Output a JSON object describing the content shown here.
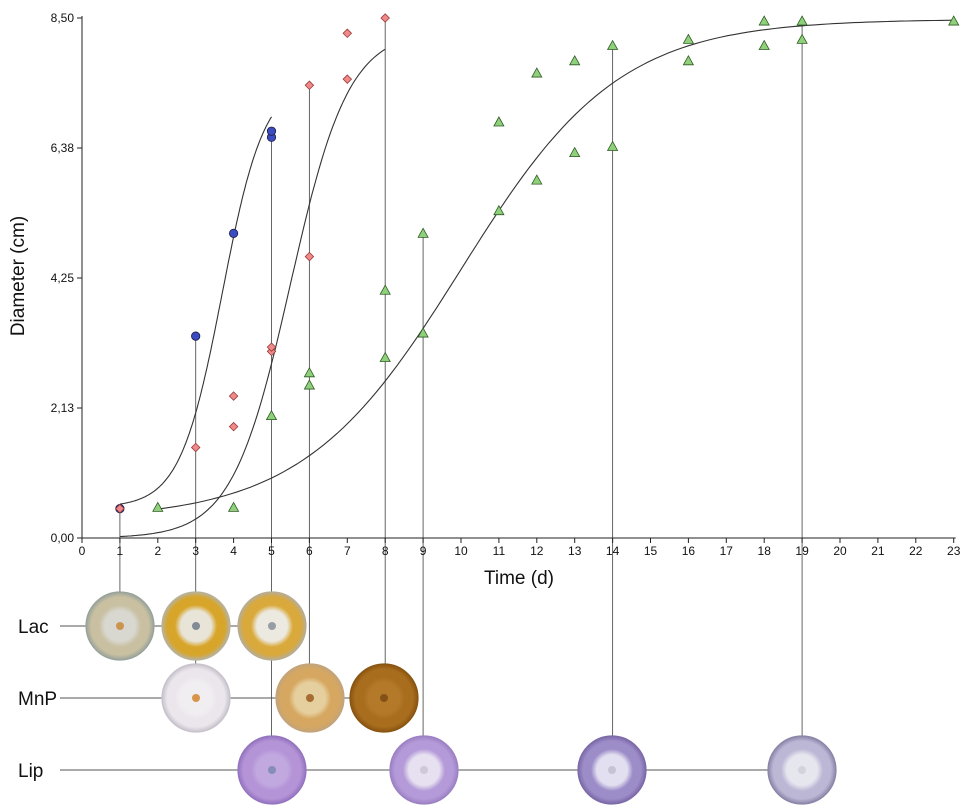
{
  "chart_data": {
    "type": "scatter",
    "xlabel": "Time (d)",
    "ylabel": "Diameter (cm)",
    "xlim": [
      0,
      23
    ],
    "ylim": [
      0,
      8.5
    ],
    "x_ticks": [
      0,
      1,
      2,
      3,
      4,
      5,
      6,
      7,
      8,
      9,
      10,
      11,
      12,
      13,
      14,
      15,
      16,
      17,
      18,
      19,
      20,
      21,
      22,
      23
    ],
    "y_ticks": [
      {
        "value": 0,
        "label": "0,00"
      },
      {
        "value": 2.125,
        "label": "2,13"
      },
      {
        "value": 4.25,
        "label": "4,25"
      },
      {
        "value": 6.375,
        "label": "6,38"
      },
      {
        "value": 8.5,
        "label": "8,50"
      }
    ],
    "grid": false,
    "series": [
      {
        "marker": "circle",
        "color": "#3b4cc0",
        "points": [
          [
            1,
            0.48
          ],
          [
            3,
            3.3
          ],
          [
            4,
            4.98
          ],
          [
            5,
            6.55
          ],
          [
            5,
            6.65
          ]
        ],
        "fit": {
          "x0": 3.7,
          "k": 1.8,
          "L": 7.0,
          "base": 0.5,
          "range": [
            1,
            5
          ]
        }
      },
      {
        "marker": "diamond",
        "color": "#f08a8a",
        "points": [
          [
            1,
            0.48
          ],
          [
            3,
            1.48
          ],
          [
            4,
            1.82
          ],
          [
            4,
            2.32
          ],
          [
            5,
            3.05
          ],
          [
            5,
            3.12
          ],
          [
            6,
            4.6
          ],
          [
            6,
            7.4
          ],
          [
            7,
            7.5
          ],
          [
            7,
            8.25
          ],
          [
            8,
            8.5
          ]
        ],
        "fit": {
          "x0": 5.5,
          "k": 1.3,
          "L": 8.3,
          "base": 0.0,
          "range": [
            1,
            8
          ]
        }
      },
      {
        "marker": "triangle",
        "color": "#8fd17a",
        "points": [
          [
            2,
            0.5
          ],
          [
            4,
            0.5
          ],
          [
            5,
            2.0
          ],
          [
            6,
            2.5
          ],
          [
            6,
            2.7
          ],
          [
            8,
            2.95
          ],
          [
            8,
            4.05
          ],
          [
            9,
            3.35
          ],
          [
            9,
            4.98
          ],
          [
            11,
            5.35
          ],
          [
            11,
            6.8
          ],
          [
            12,
            5.85
          ],
          [
            12,
            7.6
          ],
          [
            13,
            6.3
          ],
          [
            13,
            7.8
          ],
          [
            14,
            6.4
          ],
          [
            14,
            8.05
          ],
          [
            16,
            7.8
          ],
          [
            16,
            8.15
          ],
          [
            18,
            8.05
          ],
          [
            18,
            8.45
          ],
          [
            19,
            8.15
          ],
          [
            19,
            8.45
          ],
          [
            23,
            8.45
          ]
        ],
        "fit": {
          "x0": 10.0,
          "k": 0.48,
          "L": 8.18,
          "base": 0.3,
          "range": [
            2,
            23
          ]
        }
      }
    ]
  },
  "plates": {
    "rows": [
      {
        "label": "Lac",
        "plates": [
          {
            "day": 1,
            "ring": "#c9c0a2",
            "center": "#d8d8d0",
            "edge": "#9aa39a",
            "spot": "#c98a3a"
          },
          {
            "day": 3,
            "ring": "#d7a52a",
            "center": "#e8e4d8",
            "edge": "#b9b29a",
            "spot": "#6f7a8a"
          },
          {
            "day": 5,
            "ring": "#d9a93b",
            "center": "#ece9e0",
            "edge": "#b8ad93",
            "spot": "#8a8f9a"
          }
        ]
      },
      {
        "label": "MnP",
        "plates": [
          {
            "day": 3,
            "ring": "#ebe6ec",
            "center": "#f1eef2",
            "edge": "#c8c2cc",
            "spot": "#d2852e"
          },
          {
            "day": 6,
            "ring": "#d6a760",
            "center": "#e6cf9e",
            "edge": "#c4a47a",
            "spot": "#9a5a1c"
          },
          {
            "day": 8,
            "ring": "#a86d1d",
            "center": "#b47a2a",
            "edge": "#8a5512",
            "spot": "#7a4a10"
          }
        ]
      },
      {
        "label": "Lip",
        "plates": [
          {
            "day": 5,
            "ring": "#b493d6",
            "center": "#c1a9e0",
            "edge": "#9474c0",
            "spot": "#7a88b0"
          },
          {
            "day": 9,
            "ring": "#b49ad8",
            "center": "#e6e0f0",
            "edge": "#9c82c4",
            "spot": "#c8c4d4"
          },
          {
            "day": 14,
            "ring": "#9c8cc8",
            "center": "#e2dff0",
            "edge": "#7c6aa8",
            "spot": "#c0bfd0"
          },
          {
            "day": 19,
            "ring": "#bdb7d6",
            "center": "#e6e6ee",
            "edge": "#8a86a8",
            "spot": "#cfcfd8"
          }
        ]
      }
    ]
  }
}
